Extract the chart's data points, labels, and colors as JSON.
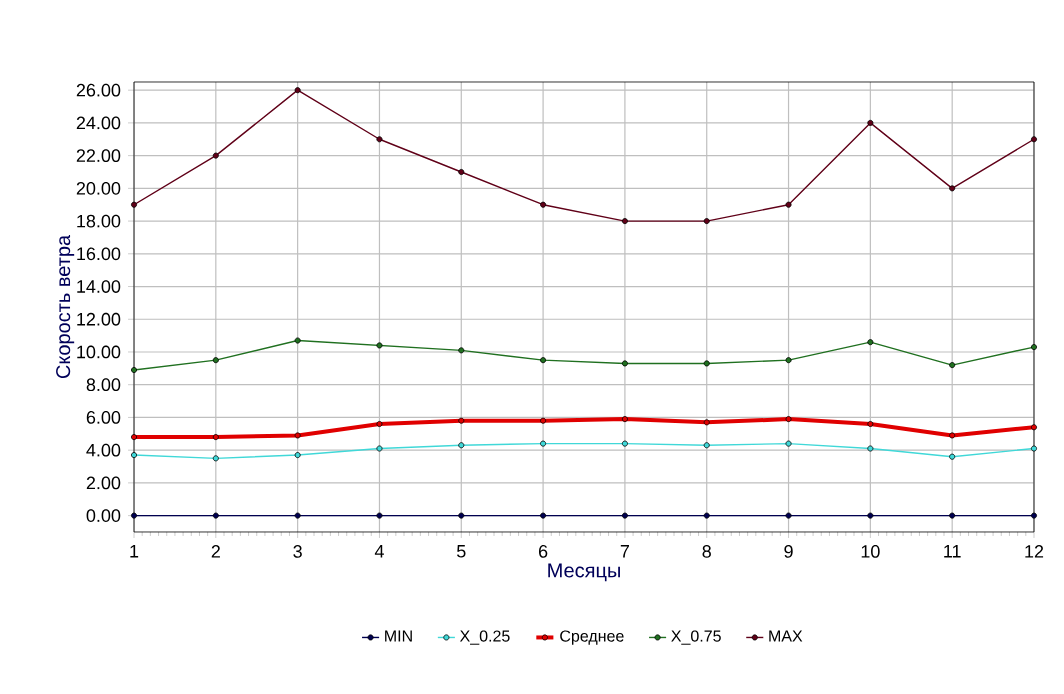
{
  "chart_data": {
    "type": "line",
    "xlabel": "Месяцы",
    "ylabel": "Скорость ветра",
    "x": [
      1,
      2,
      3,
      4,
      5,
      6,
      7,
      8,
      9,
      10,
      11,
      12
    ],
    "xlim": [
      1,
      12
    ],
    "xticks": [
      1,
      2,
      3,
      4,
      5,
      6,
      7,
      8,
      9,
      10,
      11,
      12
    ],
    "ylim": [
      -1,
      26.5
    ],
    "yticks": [
      {
        "value": 0,
        "label": "0.00"
      },
      {
        "value": 2,
        "label": "2.00"
      },
      {
        "value": 4,
        "label": "4.00"
      },
      {
        "value": 6,
        "label": "6.00"
      },
      {
        "value": 8,
        "label": "8.00"
      },
      {
        "value": 10,
        "label": "10.00"
      },
      {
        "value": 12,
        "label": "12.00"
      },
      {
        "value": 14,
        "label": "14.00"
      },
      {
        "value": 16,
        "label": "16.00"
      },
      {
        "value": 18,
        "label": "18.00"
      },
      {
        "value": 20,
        "label": "20.00"
      },
      {
        "value": 22,
        "label": "22.00"
      },
      {
        "value": 24,
        "label": "24.00"
      },
      {
        "value": 26,
        "label": "26.00"
      }
    ],
    "grid": true,
    "legend": "bottom",
    "marker": "circle",
    "line_style": "solid",
    "series": [
      {
        "name": "MIN",
        "color": "#000050",
        "values": [
          0,
          0,
          0,
          0,
          0,
          0,
          0,
          0,
          0,
          0,
          0,
          0
        ]
      },
      {
        "name": "X_0.25",
        "color": "#40d8d8",
        "values": [
          3.7,
          3.5,
          3.7,
          4.1,
          4.3,
          4.4,
          4.4,
          4.3,
          4.4,
          4.1,
          3.6,
          4.1
        ]
      },
      {
        "name": "Среднее",
        "color": "#e00000",
        "values": [
          4.8,
          4.8,
          4.9,
          5.6,
          5.8,
          5.8,
          5.9,
          5.7,
          5.9,
          5.6,
          4.9,
          5.4
        ]
      },
      {
        "name": "X_0.75",
        "color": "#207020",
        "values": [
          8.9,
          9.5,
          10.7,
          10.4,
          10.1,
          9.5,
          9.3,
          9.3,
          9.5,
          10.6,
          9.2,
          10.3
        ]
      },
      {
        "name": "MAX",
        "color": "#600018",
        "values": [
          19,
          22,
          26,
          23,
          21,
          19,
          18,
          18,
          19,
          24,
          20,
          23
        ]
      }
    ]
  }
}
